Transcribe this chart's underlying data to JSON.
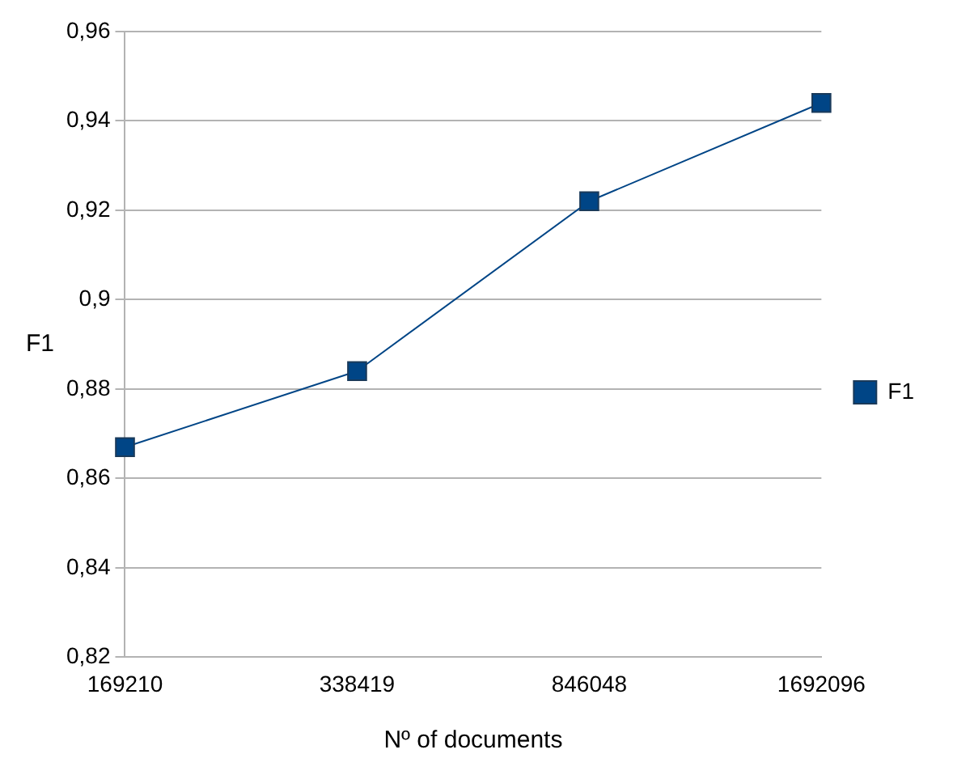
{
  "chart_data": {
    "type": "line",
    "xlabel": "Nº of documents",
    "ylabel": "F1",
    "categories": [
      "169210",
      "338419",
      "846048",
      "1692096"
    ],
    "series": [
      {
        "name": "F1",
        "color": "#004586",
        "values": [
          0.867,
          0.884,
          0.922,
          0.944
        ]
      }
    ],
    "ylim": [
      0.82,
      0.96
    ],
    "yticks": [
      {
        "value": 0.82,
        "label": "0,82"
      },
      {
        "value": 0.84,
        "label": "0,84"
      },
      {
        "value": 0.86,
        "label": "0,86"
      },
      {
        "value": 0.88,
        "label": "0,88"
      },
      {
        "value": 0.9,
        "label": "0,9"
      },
      {
        "value": 0.92,
        "label": "0,92"
      },
      {
        "value": 0.94,
        "label": "0,94"
      },
      {
        "value": 0.96,
        "label": "0,96"
      }
    ],
    "grid": "y",
    "legend": "right",
    "marker": "square",
    "line_style": "solid"
  }
}
